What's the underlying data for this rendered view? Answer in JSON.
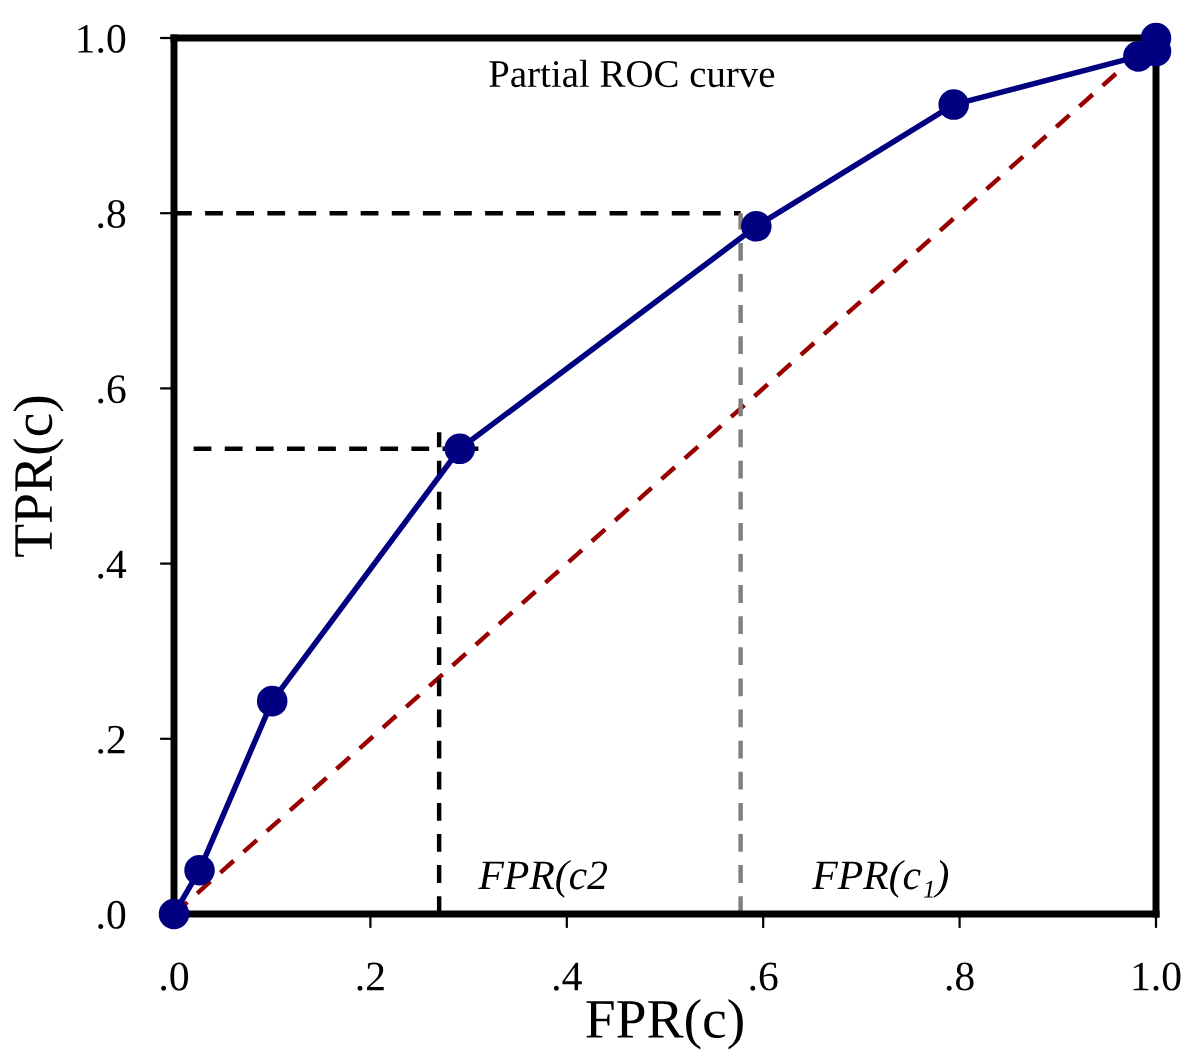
{
  "chart_data": {
    "type": "line",
    "xlabel": "FPR(c)",
    "ylabel": "TPR(c)",
    "xlim": [
      0,
      1
    ],
    "ylim": [
      0,
      1
    ],
    "xticks": [
      {
        "value": 0,
        "label": ".0"
      },
      {
        "value": 0.2,
        "label": ".2"
      },
      {
        "value": 0.4,
        "label": ".4"
      },
      {
        "value": 0.6,
        "label": ".6"
      },
      {
        "value": 0.8,
        "label": ".8"
      },
      {
        "value": 1,
        "label": "1.0"
      }
    ],
    "yticks": [
      {
        "value": 0,
        "label": ".0"
      },
      {
        "value": 0.2,
        "label": ".2"
      },
      {
        "value": 0.4,
        "label": ".4"
      },
      {
        "value": 0.6,
        "label": ".6"
      },
      {
        "value": 0.8,
        "label": ".8"
      },
      {
        "value": 1,
        "label": "1.0"
      }
    ],
    "grid": false,
    "legend": false,
    "series": [
      {
        "color": "#000080",
        "marker": "circle",
        "line_style": "solid",
        "x": [
          0,
          0.026,
          0.1,
          0.291,
          0.593,
          0.794,
          0.982,
          1.0,
          1.0
        ],
        "values": [
          0,
          0.05,
          0.243,
          0.531,
          0.785,
          0.924,
          0.979,
          0.985,
          1.0
        ]
      },
      {
        "color": "#990000",
        "marker": "none",
        "line_style": "dashed",
        "x": [
          0,
          1
        ],
        "values": [
          0,
          1
        ]
      },
      {
        "color": "#000000",
        "marker": "none",
        "line_style": "dashed",
        "x": [
          0,
          0.577
        ],
        "values": [
          0.8,
          0.8
        ]
      },
      {
        "color": "#808080",
        "marker": "none",
        "line_style": "dashed",
        "x": [
          0.577,
          0.577
        ],
        "values": [
          0,
          0.8
        ]
      },
      {
        "color": "#000000",
        "marker": "none",
        "line_style": "dashed",
        "x": [
          0.02,
          0.31
        ],
        "values": [
          0.531,
          0.531
        ]
      },
      {
        "color": "#000000",
        "marker": "none",
        "line_style": "dashed",
        "x": [
          0.27,
          0.27
        ],
        "values": [
          0,
          0.55
        ]
      }
    ],
    "annotations": [
      "Partial ROC curve",
      "FPR(c2",
      "FPR(c₁)"
    ]
  }
}
